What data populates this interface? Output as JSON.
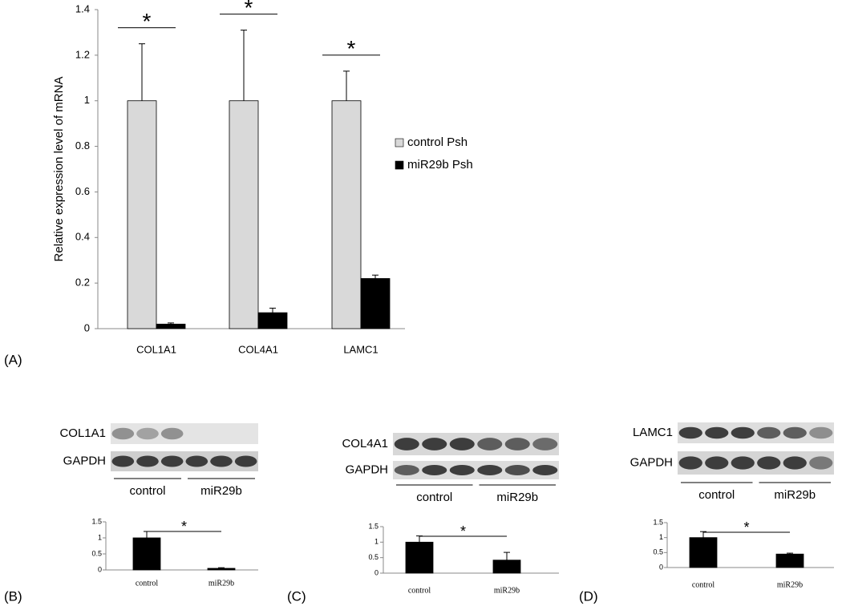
{
  "chart_data": [
    {
      "type": "bar",
      "ylabel": "Relative expression level of mRNA",
      "categories": [
        "COL1A1",
        "COL4A1",
        "LAMC1"
      ],
      "series": [
        {
          "name": "control Psh",
          "color": "#d9d9d9",
          "values": [
            1,
            1,
            1
          ],
          "errors": [
            0.25,
            0.31,
            0.13
          ]
        },
        {
          "name": "miR29b Psh",
          "color": "#000000",
          "values": [
            0.02,
            0.07,
            0.22
          ],
          "errors": [
            0.005,
            0.02,
            0.015
          ]
        }
      ],
      "ylim": [
        0,
        1.4
      ],
      "yticks": [
        0,
        0.2,
        0.4,
        0.6,
        0.8,
        1,
        1.2,
        1.4
      ],
      "annotations": [
        "*",
        "*",
        "*"
      ],
      "legend": "right"
    },
    {
      "type": "bar",
      "categories": [
        "control",
        "miR29b"
      ],
      "values": [
        1,
        0.05
      ],
      "errors": [
        0.2,
        0.02
      ],
      "color": "#000000",
      "ylim": [
        0,
        1.5
      ],
      "yticks": [
        0,
        0.5,
        1,
        1.5
      ],
      "annotations": [
        "*"
      ]
    },
    {
      "type": "bar",
      "categories": [
        "control",
        "miR29b"
      ],
      "values": [
        1,
        0.42
      ],
      "errors": [
        0.2,
        0.25
      ],
      "color": "#000000",
      "ylim": [
        0,
        1.5
      ],
      "yticks": [
        0,
        0.5,
        1,
        1.5
      ],
      "annotations": [
        "*"
      ]
    },
    {
      "type": "bar",
      "categories": [
        "control",
        "miR29b"
      ],
      "values": [
        1,
        0.45
      ],
      "errors": [
        0.2,
        0.03
      ],
      "color": "#000000",
      "ylim": [
        0,
        1.5
      ],
      "yticks": [
        0,
        0.5,
        1,
        1.5
      ],
      "annotations": [
        "*"
      ]
    }
  ],
  "blots": [
    {
      "labels": [
        "COL1A1",
        "GAPDH"
      ],
      "groups": [
        "control",
        "miR29b"
      ]
    },
    {
      "labels": [
        "COL4A1",
        "GAPDH"
      ],
      "groups": [
        "control",
        "miR29b"
      ]
    },
    {
      "labels": [
        "LAMC1",
        "GAPDH"
      ],
      "groups": [
        "control",
        "miR29b"
      ]
    }
  ],
  "panel_labels": [
    "(A)",
    "(B)",
    "(C)",
    "(D)"
  ]
}
